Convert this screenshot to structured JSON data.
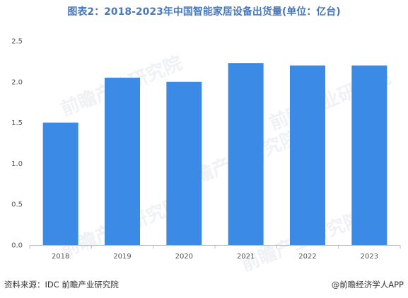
{
  "chart_data": {
    "type": "bar",
    "title": "图表2：2018-2023年中国智能家居设备出货量(单位：亿台)",
    "categories": [
      "2018",
      "2019",
      "2020",
      "2021",
      "2022",
      "2023"
    ],
    "values": [
      1.5,
      2.05,
      2.0,
      2.23,
      2.2,
      2.2
    ],
    "xlabel": "",
    "ylabel": "",
    "ylim": [
      0,
      2.5
    ],
    "yticks": [
      "0.0",
      "0.5",
      "1.0",
      "1.5",
      "2.0",
      "2.5"
    ],
    "grid": false,
    "legend": "none",
    "bar_color": "#3a8ae6",
    "axis_color": "#bfbfbf"
  },
  "watermark": "前瞻产业研究院",
  "footer": {
    "source": "资料来源：IDC 前瞻产业研究院",
    "brand": "@前瞻经济学人APP"
  }
}
